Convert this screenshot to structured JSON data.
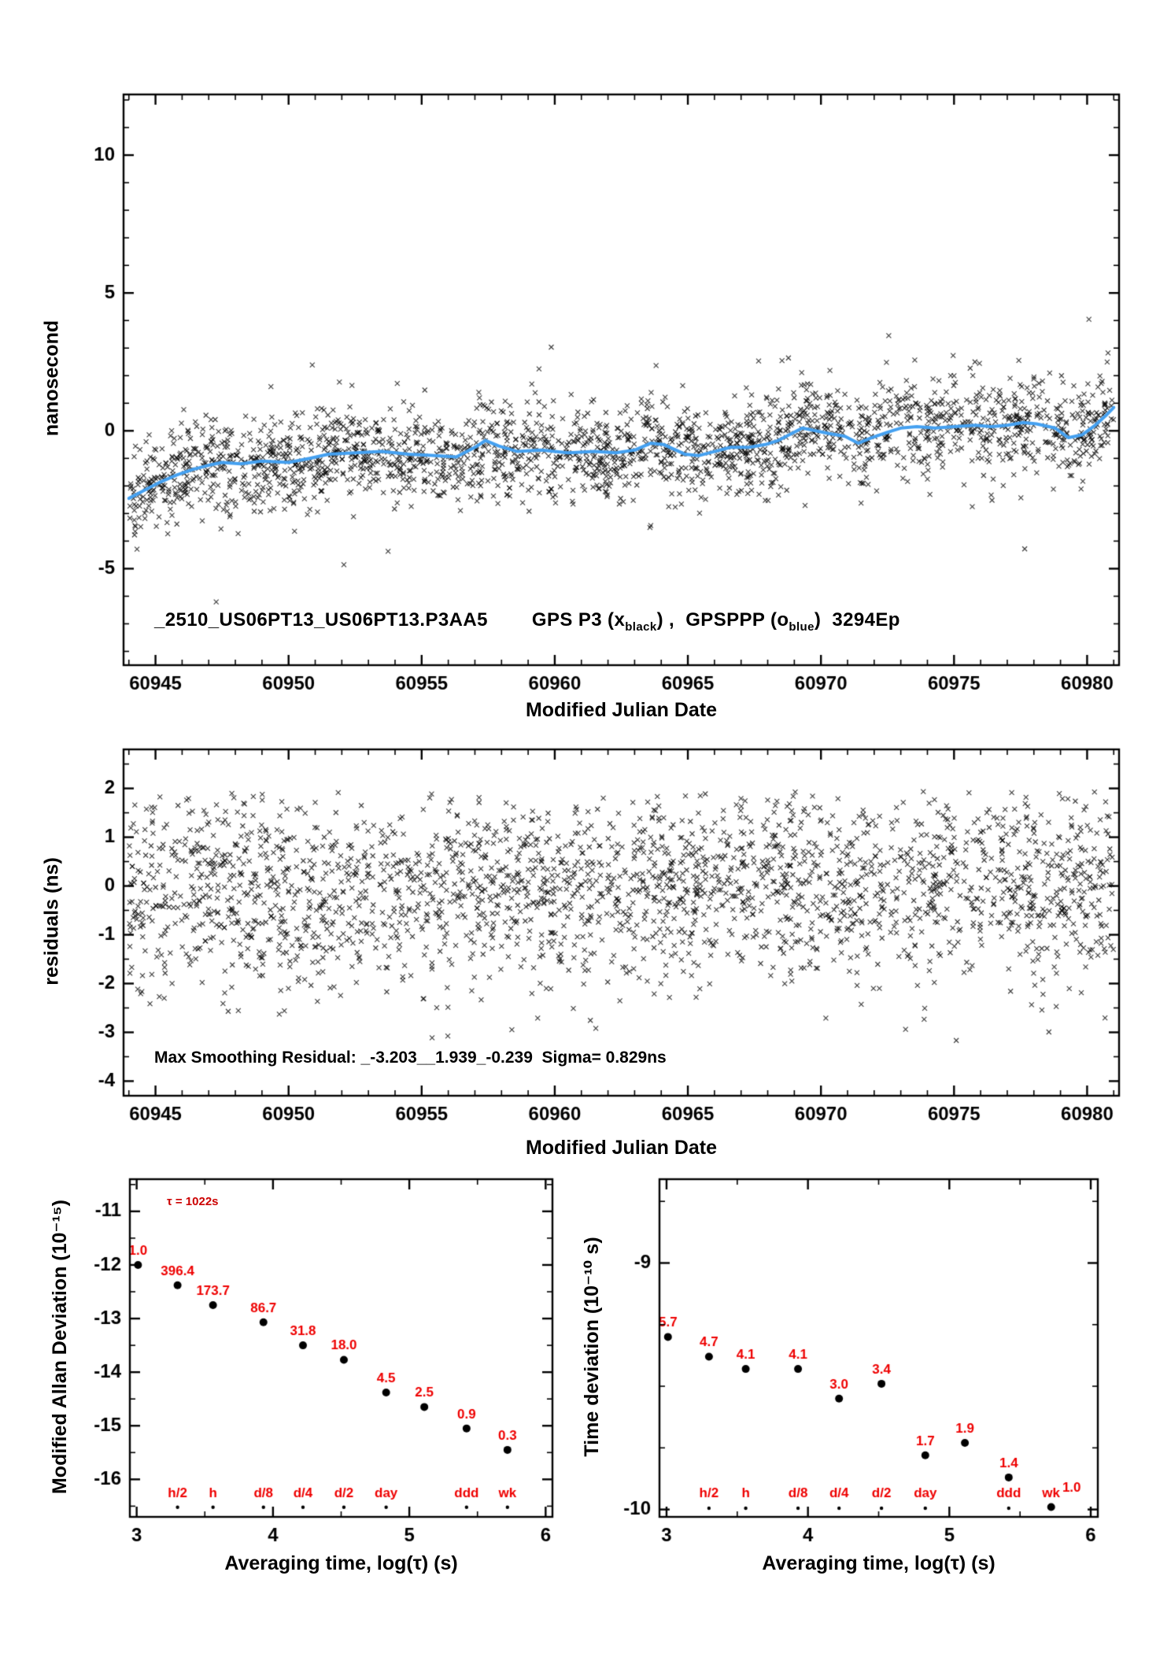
{
  "page": {
    "background": "#ffffff",
    "accent_red": "#ee0000",
    "trend_blue": "#44a0f0"
  },
  "chart_data": [
    {
      "type": "scatter",
      "name": "phase-comparison",
      "xlabel": "Modified Julian Date",
      "ylabel": "nanosecond",
      "xlim": [
        60943.8,
        60981.2
      ],
      "ylim": [
        -8.5,
        12.2
      ],
      "xticks": [
        60945,
        60950,
        60955,
        60960,
        60965,
        60970,
        60975,
        60980
      ],
      "yticks": [
        -5,
        0,
        5,
        10
      ],
      "xminor": 1,
      "yminor": 1,
      "grid": false,
      "annotation": {
        "id": "_2510_US06PT13_US06PT13.P3AA5",
        "series1_pre": "GPS P3 (x",
        "series1_sub": "black",
        "mid": ") ,  GPSPPP (o",
        "series2_sub": "blue",
        "tail": ")  3294Ep"
      },
      "scatter": {
        "n": 2400,
        "sigma": 0.85,
        "seed": 42,
        "xrange": [
          60944.0,
          60981.0
        ],
        "marker": "x",
        "color": "#000000"
      },
      "trend_series": {
        "name": "GPSPPP smoothed",
        "color": "#44a0f0",
        "width": 4,
        "points": [
          [
            60944.0,
            -2.45
          ],
          [
            60944.6,
            -2.15
          ],
          [
            60945.2,
            -1.85
          ],
          [
            60945.8,
            -1.6
          ],
          [
            60946.4,
            -1.4
          ],
          [
            60947.0,
            -1.25
          ],
          [
            60947.5,
            -1.15
          ],
          [
            60948.2,
            -1.2
          ],
          [
            60949.0,
            -1.1
          ],
          [
            60950.0,
            -1.15
          ],
          [
            60950.8,
            -1.0
          ],
          [
            60951.5,
            -0.85
          ],
          [
            60952.5,
            -0.8
          ],
          [
            60953.5,
            -0.75
          ],
          [
            60954.5,
            -0.85
          ],
          [
            60955.5,
            -0.9
          ],
          [
            60956.3,
            -0.95
          ],
          [
            60957.0,
            -0.6
          ],
          [
            60957.4,
            -0.35
          ],
          [
            60957.9,
            -0.55
          ],
          [
            60958.6,
            -0.75
          ],
          [
            60959.5,
            -0.7
          ],
          [
            60960.5,
            -0.8
          ],
          [
            60961.5,
            -0.75
          ],
          [
            60962.3,
            -0.8
          ],
          [
            60963.0,
            -0.7
          ],
          [
            60963.6,
            -0.45
          ],
          [
            60964.1,
            -0.5
          ],
          [
            60964.9,
            -0.85
          ],
          [
            60965.4,
            -0.9
          ],
          [
            60966.0,
            -0.75
          ],
          [
            60966.6,
            -0.6
          ],
          [
            60967.3,
            -0.6
          ],
          [
            60967.9,
            -0.5
          ],
          [
            60968.4,
            -0.35
          ],
          [
            60968.9,
            -0.1
          ],
          [
            60969.3,
            0.1
          ],
          [
            60969.8,
            0.0
          ],
          [
            60970.3,
            -0.1
          ],
          [
            60970.9,
            -0.2
          ],
          [
            60971.4,
            -0.45
          ],
          [
            60971.9,
            -0.25
          ],
          [
            60972.5,
            -0.05
          ],
          [
            60973.0,
            0.1
          ],
          [
            60973.6,
            0.15
          ],
          [
            60974.3,
            0.1
          ],
          [
            60975.0,
            0.15
          ],
          [
            60975.8,
            0.2
          ],
          [
            60976.4,
            0.15
          ],
          [
            60977.0,
            0.2
          ],
          [
            60977.6,
            0.3
          ],
          [
            60978.1,
            0.25
          ],
          [
            60978.8,
            0.1
          ],
          [
            60979.3,
            -0.25
          ],
          [
            60979.8,
            -0.15
          ],
          [
            60980.3,
            0.2
          ],
          [
            60980.7,
            0.55
          ],
          [
            60981.0,
            0.85
          ]
        ]
      }
    },
    {
      "type": "scatter",
      "name": "smoothing-residuals",
      "xlabel": "Modified Julian Date",
      "ylabel": "residuals (ns)",
      "xlim": [
        60943.8,
        60981.2
      ],
      "ylim": [
        -4.3,
        2.8
      ],
      "xticks": [
        60945,
        60950,
        60955,
        60960,
        60965,
        60970,
        60975,
        60980
      ],
      "yticks": [
        -4,
        -3,
        -2,
        -1,
        0,
        1,
        2
      ],
      "xminor": 1,
      "yminor": 0.5,
      "grid": false,
      "annotation": "Max Smoothing Residual: _-3.203__1.939_-0.239  Sigma= 0.829ns",
      "scatter": {
        "n": 2400,
        "sigma": 1.0,
        "seed": 7,
        "xrange": [
          60944.0,
          60981.0
        ],
        "clip": [
          -3.203,
          1.939
        ],
        "marker": "x",
        "color": "#000000"
      }
    },
    {
      "type": "scatter",
      "name": "modified-allan-deviation",
      "xlabel": "Averaging time, log(τ) (s)",
      "ylabel": "Modified Allan Deviation (10⁻¹⁵)",
      "xlim": [
        2.95,
        6.05
      ],
      "ylim": [
        -16.7,
        -10.4
      ],
      "xticks": [
        3,
        4,
        5,
        6
      ],
      "yticks": [
        -16,
        -15,
        -14,
        -13,
        -12,
        -11
      ],
      "xminor": 0.5,
      "yminor": 0.5,
      "grid": false,
      "tau_annotation": "τ = 1022s",
      "points": {
        "x": [
          3.01,
          3.3,
          3.56,
          3.93,
          4.22,
          4.52,
          4.83,
          5.11,
          5.42,
          5.72
        ],
        "y": [
          -12.0,
          -12.38,
          -12.75,
          -13.07,
          -13.5,
          -13.77,
          -14.38,
          -14.65,
          -15.05,
          -15.45
        ],
        "labels": [
          "1.0",
          "396.4",
          "173.7",
          "86.7",
          "31.8",
          "18.0",
          "4.5",
          "2.5",
          "0.9",
          "0.3"
        ],
        "label_color": "#ee0000",
        "marker_color": "#000000"
      },
      "bottom_labels": {
        "x": [
          3.3,
          3.56,
          3.93,
          4.22,
          4.52,
          4.83,
          5.42,
          5.72
        ],
        "labels": [
          "h/2",
          "h",
          "d/8",
          "d/4",
          "d/2",
          "day",
          "ddd",
          "wk"
        ],
        "label_y": -16.26,
        "dot_y": -16.52,
        "color": "#ee0000"
      }
    },
    {
      "type": "scatter",
      "name": "time-deviation",
      "xlabel": "Averaging time, log(τ) (s)",
      "ylabel": "Time deviation (10⁻¹⁰ s)",
      "xlim": [
        2.95,
        6.05
      ],
      "ylim": [
        -10.03,
        -8.66
      ],
      "xticks": [
        3,
        4,
        5,
        6
      ],
      "yticks": [
        -10,
        -9
      ],
      "xminor": 0.5,
      "yminor": 0.25,
      "grid": false,
      "points": {
        "x": [
          3.01,
          3.3,
          3.56,
          3.93,
          4.22,
          4.52,
          4.83,
          5.11,
          5.42,
          5.72
        ],
        "y": [
          -9.3,
          -9.38,
          -9.43,
          -9.43,
          -9.55,
          -9.49,
          -9.78,
          -9.73,
          -9.87,
          -9.99
        ],
        "labels": [
          "5.7",
          "4.7",
          "4.1",
          "4.1",
          "3.0",
          "3.4",
          "1.7",
          "1.9",
          "1.4",
          "1.0"
        ],
        "label_dx": [
          0,
          0,
          0,
          0,
          0,
          0,
          0,
          0,
          0,
          26
        ],
        "label_dy": [
          0,
          0,
          0,
          0,
          0,
          0,
          0,
          0,
          0,
          -6
        ],
        "label_color": "#ee0000",
        "marker_color": "#000000"
      },
      "bottom_labels": {
        "x": [
          3.3,
          3.56,
          3.93,
          4.22,
          4.52,
          4.83,
          5.42,
          5.72
        ],
        "labels": [
          "h/2",
          "h",
          "d/8",
          "d/4",
          "d/2",
          "day",
          "ddd",
          "wk"
        ],
        "label_y": -9.935,
        "dot_y": -9.995,
        "color": "#ee0000"
      }
    }
  ]
}
